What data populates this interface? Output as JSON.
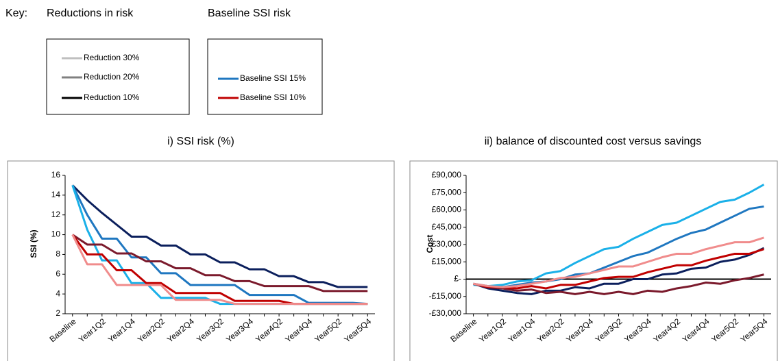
{
  "key": {
    "label": "Key:",
    "groups": [
      {
        "title": "Reductions in risk",
        "entries": [
          {
            "name": "Reduction 30%",
            "color": "#bfbfbf"
          },
          {
            "name": "Reduction 20%",
            "color": "#808080"
          },
          {
            "name": "Reduction 10%",
            "color": "#000000"
          }
        ]
      },
      {
        "title": "Baseline SSI risk",
        "entries": [
          {
            "name": "Baseline SSI 15%",
            "color": "#1f77c0"
          },
          {
            "name": "Baseline SSI 10%",
            "color": "#c00000"
          }
        ]
      }
    ]
  },
  "chart_data": [
    {
      "type": "line",
      "title": "i) SSI risk (%)",
      "y_label": "SSI (%)",
      "categories": [
        "Baseline",
        null,
        "Year1Q2",
        null,
        "Year1Q4",
        null,
        "Year2Q2",
        null,
        "Year2Q4",
        null,
        "Year3Q2",
        null,
        "Year3Q4",
        null,
        "Year4Q2",
        null,
        "Year4Q4",
        null,
        "Year5Q2",
        null,
        "Year5Q4"
      ],
      "ylim": [
        2,
        16
      ],
      "yticks": [
        2,
        4,
        6,
        8,
        10,
        12,
        14,
        16
      ],
      "series": [
        {
          "color": "#0b1f5c",
          "values": [
            15,
            13.5,
            12.2,
            11,
            9.8,
            9.8,
            8.9,
            8.9,
            8.0,
            8.0,
            7.2,
            7.2,
            6.5,
            6.5,
            5.8,
            5.8,
            5.2,
            5.2,
            4.7,
            4.7,
            4.7
          ]
        },
        {
          "color": "#1f77c0",
          "values": [
            15,
            12,
            9.6,
            9.6,
            7.7,
            7.7,
            6.1,
            6.1,
            4.9,
            4.9,
            4.9,
            4.9,
            3.9,
            3.9,
            3.9,
            3.9,
            3.1,
            3.1,
            3.1,
            3.1,
            3.0
          ]
        },
        {
          "color": "#1ab0e8",
          "values": [
            15,
            10.5,
            7.4,
            7.4,
            5.1,
            5.1,
            3.6,
            3.6,
            3.6,
            3.6,
            3.0,
            3.0,
            3.0,
            3.0,
            3.0,
            3.0,
            3.0,
            3.0,
            3.0,
            3.0,
            3.0
          ]
        },
        {
          "color": "#7b1a2c",
          "values": [
            10,
            9,
            9,
            8.1,
            8.1,
            7.3,
            7.3,
            6.6,
            6.6,
            5.9,
            5.9,
            5.3,
            5.3,
            4.8,
            4.8,
            4.8,
            4.8,
            4.3,
            4.3,
            4.3,
            4.3
          ]
        },
        {
          "color": "#c00000",
          "values": [
            10,
            8,
            8,
            6.4,
            6.4,
            5.1,
            5.1,
            4.1,
            4.1,
            4.1,
            4.1,
            3.3,
            3.3,
            3.3,
            3.3,
            3.0,
            3.0,
            3.0,
            3.0,
            3.0,
            3.0
          ]
        },
        {
          "color": "#f08c8c",
          "values": [
            10,
            7,
            7,
            4.9,
            4.9,
            4.9,
            4.9,
            3.4,
            3.4,
            3.4,
            3.4,
            3.0,
            3.0,
            3.0,
            3.0,
            3.0,
            3.0,
            3.0,
            3.0,
            3.0,
            3.0
          ]
        }
      ]
    },
    {
      "type": "line",
      "title": "ii) balance of discounted cost versus savings",
      "y_label": "Cost",
      "categories": [
        "Baseline",
        null,
        "Year1Q2",
        null,
        "Year1Q4",
        null,
        "Year2Q2",
        null,
        "Year2Q4",
        null,
        "Year3Q2",
        null,
        "Year3Q4",
        null,
        "Year4Q2",
        null,
        "Year4Q4",
        null,
        "Year5Q2",
        null,
        "Year5Q4"
      ],
      "ylim": [
        -30000,
        90000
      ],
      "yticks": [
        {
          "value": -30000,
          "label": "-£30,000"
        },
        {
          "value": -15000,
          "label": "-£15,000"
        },
        {
          "value": 0,
          "label": "£-"
        },
        {
          "value": 15000,
          "label": "£15,000"
        },
        {
          "value": 30000,
          "label": "£30,000"
        },
        {
          "value": 45000,
          "label": "£45,000"
        },
        {
          "value": 60000,
          "label": "£60,000"
        },
        {
          "value": 75000,
          "label": "£75,000"
        },
        {
          "value": 90000,
          "label": "£90,000"
        }
      ],
      "series": [
        {
          "color": "#0b1f5c",
          "values": [
            -4000,
            -8000,
            -10000,
            -12000,
            -13000,
            -10000,
            -10000,
            -7000,
            -8000,
            -4000,
            -4000,
            0,
            0,
            4000,
            5000,
            9000,
            10000,
            15000,
            17000,
            21000,
            27000
          ]
        },
        {
          "color": "#1f77c0",
          "values": [
            -4000,
            -6000,
            -7000,
            -5000,
            -3000,
            -2000,
            0,
            4000,
            5000,
            10000,
            15000,
            20000,
            23000,
            29000,
            35000,
            40000,
            43000,
            49000,
            55000,
            61000,
            63000
          ]
        },
        {
          "color": "#1ab0e8",
          "values": [
            -5000,
            -6000,
            -5000,
            -2000,
            -1000,
            5000,
            7000,
            14000,
            20000,
            26000,
            28000,
            35000,
            41000,
            47000,
            49000,
            55000,
            61000,
            67000,
            69000,
            75000,
            82000
          ]
        },
        {
          "color": "#7b1a2c",
          "values": [
            -4000,
            -7000,
            -8000,
            -10000,
            -9000,
            -12000,
            -11000,
            -13000,
            -11000,
            -13000,
            -11000,
            -13000,
            -10000,
            -11000,
            -8000,
            -6000,
            -3000,
            -4000,
            -1000,
            1000,
            4000
          ]
        },
        {
          "color": "#c00000",
          "values": [
            -4000,
            -7000,
            -7000,
            -8000,
            -6000,
            -8000,
            -5000,
            -5000,
            -2000,
            1000,
            2000,
            2000,
            6000,
            9000,
            12000,
            12000,
            16000,
            19000,
            22000,
            22000,
            26000
          ]
        },
        {
          "color": "#f08c8c",
          "values": [
            -4000,
            -6000,
            -7000,
            -6000,
            -4000,
            -2000,
            1000,
            2000,
            5000,
            8000,
            11000,
            11000,
            15000,
            19000,
            22000,
            22000,
            26000,
            29000,
            32000,
            32000,
            36000
          ]
        }
      ]
    }
  ]
}
